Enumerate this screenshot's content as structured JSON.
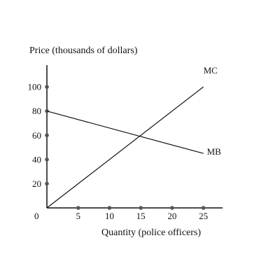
{
  "chart_data": {
    "type": "line",
    "ylabel": "Price (thousands of dollars)",
    "xlabel": "Quantity (police officers)",
    "origin_label": "0",
    "xlim": [
      0,
      27
    ],
    "ylim": [
      0,
      118
    ],
    "x_ticks": [
      {
        "value": 5,
        "label": "5"
      },
      {
        "value": 10,
        "label": "10"
      },
      {
        "value": 15,
        "label": "15"
      },
      {
        "value": 20,
        "label": "20"
      },
      {
        "value": 25,
        "label": "25"
      }
    ],
    "y_ticks": [
      {
        "value": 20,
        "label": "20"
      },
      {
        "value": 40,
        "label": "40"
      },
      {
        "value": 60,
        "label": "60"
      },
      {
        "value": 80,
        "label": "80"
      },
      {
        "value": 100,
        "label": "100"
      }
    ],
    "series": [
      {
        "name": "MC",
        "x": [
          0,
          25
        ],
        "y": [
          0,
          100
        ]
      },
      {
        "name": "MB",
        "x": [
          0,
          25
        ],
        "y": [
          80,
          45
        ]
      }
    ],
    "colors": {
      "line": "#111111",
      "tick_dot": "#555555"
    }
  }
}
